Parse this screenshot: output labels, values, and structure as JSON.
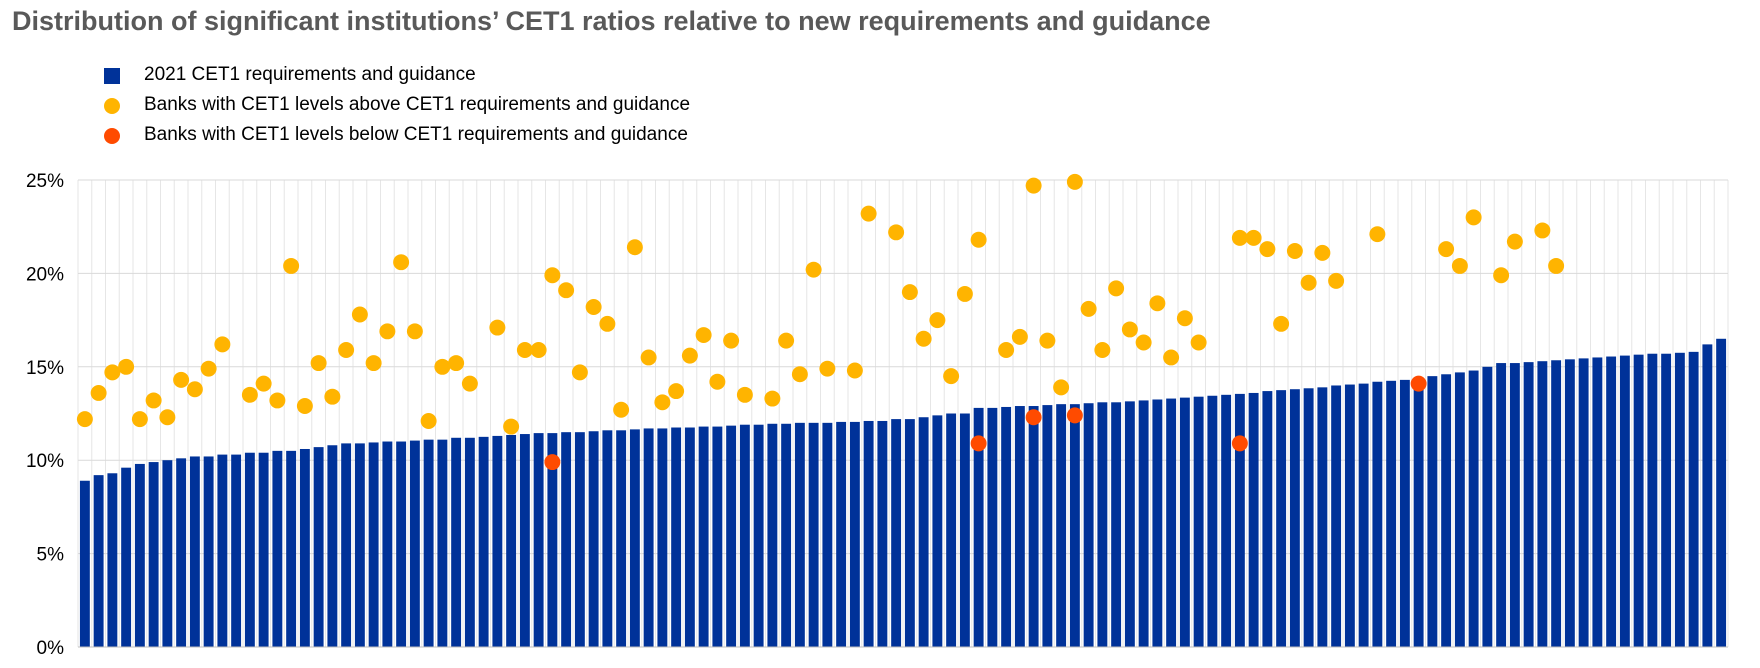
{
  "chart_data": {
    "type": "bar",
    "title": "Distribution of significant institutions’ CET1 ratios relative to new requirements and guidance",
    "xlabel": "",
    "ylabel": "",
    "ylim": [
      0,
      25
    ],
    "yticks": [
      "0%",
      "5%",
      "10%",
      "15%",
      "20%",
      "25%"
    ],
    "grid": true,
    "legend_position": "top-left",
    "colors": {
      "requirements": "#003299",
      "above": "#FFB400",
      "below": "#FF4B00"
    },
    "legend": [
      {
        "key": "requirements",
        "label": "2021 CET1 requirements and guidance",
        "marker": "square"
      },
      {
        "key": "above",
        "label": "Banks with CET1 levels above CET1 requirements and guidance",
        "marker": "circle"
      },
      {
        "key": "below",
        "label": "Banks with CET1 levels below CET1 requirements and guidance",
        "marker": "circle"
      }
    ],
    "requirements": [
      8.9,
      9.2,
      9.3,
      9.6,
      9.8,
      9.9,
      10.0,
      10.1,
      10.2,
      10.2,
      10.3,
      10.3,
      10.4,
      10.4,
      10.5,
      10.5,
      10.6,
      10.7,
      10.8,
      10.9,
      10.9,
      10.95,
      11.0,
      11.0,
      11.05,
      11.1,
      11.1,
      11.2,
      11.2,
      11.25,
      11.3,
      11.35,
      11.4,
      11.45,
      11.45,
      11.5,
      11.5,
      11.55,
      11.6,
      11.6,
      11.65,
      11.7,
      11.7,
      11.75,
      11.75,
      11.8,
      11.8,
      11.85,
      11.9,
      11.9,
      11.95,
      11.95,
      12.0,
      12.0,
      12.0,
      12.05,
      12.05,
      12.1,
      12.1,
      12.2,
      12.2,
      12.3,
      12.4,
      12.5,
      12.5,
      12.8,
      12.8,
      12.85,
      12.9,
      12.9,
      12.95,
      13.0,
      13.0,
      13.05,
      13.1,
      13.1,
      13.15,
      13.2,
      13.25,
      13.3,
      13.35,
      13.4,
      13.45,
      13.5,
      13.55,
      13.6,
      13.7,
      13.75,
      13.8,
      13.85,
      13.9,
      14.0,
      14.05,
      14.1,
      14.2,
      14.25,
      14.3,
      14.4,
      14.5,
      14.6,
      14.7,
      14.8,
      15.0,
      15.2,
      15.2,
      15.25,
      15.3,
      15.35,
      15.4,
      15.45,
      15.5,
      15.55,
      15.6,
      15.65,
      15.7,
      15.7,
      15.75,
      15.8,
      16.2,
      16.5
    ],
    "banks_above": [
      {
        "bank": 1,
        "value": 12.2
      },
      {
        "bank": 2,
        "value": 13.6
      },
      {
        "bank": 3,
        "value": 14.7
      },
      {
        "bank": 4,
        "value": 15.0
      },
      {
        "bank": 5,
        "value": 12.2
      },
      {
        "bank": 6,
        "value": 13.2
      },
      {
        "bank": 7,
        "value": 12.3
      },
      {
        "bank": 8,
        "value": 14.3
      },
      {
        "bank": 9,
        "value": 13.8
      },
      {
        "bank": 10,
        "value": 14.9
      },
      {
        "bank": 11,
        "value": 16.2
      },
      {
        "bank": 13,
        "value": 13.5
      },
      {
        "bank": 14,
        "value": 14.1
      },
      {
        "bank": 15,
        "value": 13.2
      },
      {
        "bank": 16,
        "value": 20.4
      },
      {
        "bank": 17,
        "value": 12.9
      },
      {
        "bank": 18,
        "value": 15.2
      },
      {
        "bank": 19,
        "value": 13.4
      },
      {
        "bank": 20,
        "value": 15.9
      },
      {
        "bank": 21,
        "value": 17.8
      },
      {
        "bank": 22,
        "value": 15.2
      },
      {
        "bank": 23,
        "value": 16.9
      },
      {
        "bank": 24,
        "value": 20.6
      },
      {
        "bank": 25,
        "value": 16.9
      },
      {
        "bank": 26,
        "value": 12.1
      },
      {
        "bank": 27,
        "value": 15.0
      },
      {
        "bank": 28,
        "value": 15.2
      },
      {
        "bank": 29,
        "value": 14.1
      },
      {
        "bank": 31,
        "value": 17.1
      },
      {
        "bank": 32,
        "value": 11.8
      },
      {
        "bank": 33,
        "value": 15.9
      },
      {
        "bank": 34,
        "value": 15.9
      },
      {
        "bank": 35,
        "value": 19.9
      },
      {
        "bank": 36,
        "value": 19.1
      },
      {
        "bank": 37,
        "value": 14.7
      },
      {
        "bank": 38,
        "value": 18.2
      },
      {
        "bank": 39,
        "value": 17.3
      },
      {
        "bank": 40,
        "value": 12.7
      },
      {
        "bank": 41,
        "value": 21.4
      },
      {
        "bank": 42,
        "value": 15.5
      },
      {
        "bank": 43,
        "value": 13.1
      },
      {
        "bank": 44,
        "value": 13.7
      },
      {
        "bank": 45,
        "value": 15.6
      },
      {
        "bank": 46,
        "value": 16.7
      },
      {
        "bank": 47,
        "value": 14.2
      },
      {
        "bank": 48,
        "value": 16.4
      },
      {
        "bank": 49,
        "value": 13.5
      },
      {
        "bank": 51,
        "value": 13.3
      },
      {
        "bank": 52,
        "value": 16.4
      },
      {
        "bank": 53,
        "value": 14.6
      },
      {
        "bank": 54,
        "value": 20.2
      },
      {
        "bank": 55,
        "value": 14.9
      },
      {
        "bank": 57,
        "value": 14.8
      },
      {
        "bank": 58,
        "value": 23.2
      },
      {
        "bank": 60,
        "value": 22.2
      },
      {
        "bank": 61,
        "value": 19.0
      },
      {
        "bank": 62,
        "value": 16.5
      },
      {
        "bank": 63,
        "value": 17.5
      },
      {
        "bank": 64,
        "value": 14.5
      },
      {
        "bank": 65,
        "value": 18.9
      },
      {
        "bank": 66,
        "value": 21.8
      },
      {
        "bank": 68,
        "value": 15.9
      },
      {
        "bank": 69,
        "value": 16.6
      },
      {
        "bank": 70,
        "value": 24.7
      },
      {
        "bank": 71,
        "value": 16.4
      },
      {
        "bank": 72,
        "value": 13.9
      },
      {
        "bank": 73,
        "value": 24.9
      },
      {
        "bank": 74,
        "value": 18.1
      },
      {
        "bank": 75,
        "value": 15.9
      },
      {
        "bank": 76,
        "value": 19.2
      },
      {
        "bank": 77,
        "value": 17.0
      },
      {
        "bank": 78,
        "value": 16.3
      },
      {
        "bank": 79,
        "value": 18.4
      },
      {
        "bank": 80,
        "value": 15.5
      },
      {
        "bank": 81,
        "value": 17.6
      },
      {
        "bank": 82,
        "value": 16.3
      },
      {
        "bank": 85,
        "value": 21.9
      },
      {
        "bank": 86,
        "value": 21.9
      },
      {
        "bank": 87,
        "value": 21.3
      },
      {
        "bank": 88,
        "value": 17.3
      },
      {
        "bank": 89,
        "value": 21.2
      },
      {
        "bank": 90,
        "value": 19.5
      },
      {
        "bank": 91,
        "value": 21.1
      },
      {
        "bank": 92,
        "value": 19.6
      },
      {
        "bank": 95,
        "value": 22.1
      },
      {
        "bank": 100,
        "value": 21.3
      },
      {
        "bank": 101,
        "value": 20.4
      },
      {
        "bank": 102,
        "value": 23.0
      },
      {
        "bank": 104,
        "value": 19.9
      },
      {
        "bank": 105,
        "value": 21.7
      },
      {
        "bank": 107,
        "value": 22.3
      },
      {
        "bank": 108,
        "value": 20.4
      }
    ],
    "banks_below": [
      {
        "bank": 35,
        "value": 9.9
      },
      {
        "bank": 66,
        "value": 10.9
      },
      {
        "bank": 70,
        "value": 12.3
      },
      {
        "bank": 73,
        "value": 12.4
      },
      {
        "bank": 85,
        "value": 10.9
      },
      {
        "bank": 98,
        "value": 14.1
      }
    ]
  }
}
